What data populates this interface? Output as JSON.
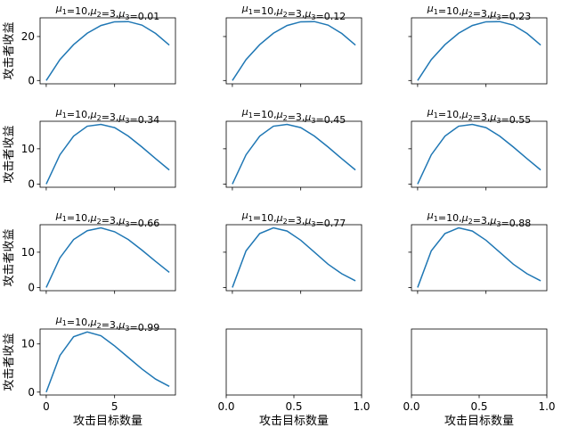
{
  "chart_data": {
    "type": "line",
    "layout": {
      "rows": 4,
      "cols": 3,
      "sharey_by_row": true
    },
    "ylabel": "攻击者收益",
    "xlabel": "攻击目标数量",
    "line_color": "#1f77b4",
    "subplots": [
      {
        "title": "μ1=10,μ2=3,μ3=0.01",
        "x": [
          0,
          1,
          2,
          3,
          4,
          5,
          6,
          7,
          8,
          9
        ],
        "y": [
          0,
          9.5,
          16.3,
          21.5,
          25,
          26.7,
          26.8,
          25.2,
          21.4,
          16.1
        ],
        "ylim": [
          -1.5,
          28.5
        ],
        "yticks": [
          0,
          20
        ],
        "xlim": [
          -0.45,
          9.45
        ],
        "xticks": [
          0,
          5
        ]
      },
      {
        "title": "μ1=10,μ2=3,μ3=0.12",
        "x": [
          0,
          1,
          2,
          3,
          4,
          5,
          6,
          7,
          8,
          9
        ],
        "y": [
          0,
          9.5,
          16.3,
          21.5,
          25,
          26.7,
          26.8,
          25.2,
          21.4,
          16.1
        ],
        "ylim": [
          -1.5,
          28.5
        ],
        "yticks": [
          0,
          20
        ],
        "xlim": [
          -0.45,
          9.45
        ],
        "xticks": [
          0,
          5
        ]
      },
      {
        "title": "μ1=10,μ2=3,μ3=0.23",
        "x": [
          0,
          1,
          2,
          3,
          4,
          5,
          6,
          7,
          8,
          9
        ],
        "y": [
          0,
          9.5,
          16.3,
          21.5,
          25,
          26.7,
          26.8,
          25.2,
          21.4,
          16.1
        ],
        "ylim": [
          -1.5,
          28.5
        ],
        "yticks": [
          0,
          20
        ],
        "xlim": [
          -0.45,
          9.45
        ],
        "xticks": [
          0,
          5
        ]
      },
      {
        "title": "μ1=10,μ2=3,μ3=0.34",
        "x": [
          0,
          1,
          2,
          3,
          4,
          5,
          6,
          7,
          8,
          9
        ],
        "y": [
          0,
          8.3,
          13.6,
          16.4,
          16.9,
          16,
          13.6,
          10.5,
          7.2,
          4
        ],
        "ylim": [
          -0.9,
          17.8
        ],
        "yticks": [
          0,
          10
        ],
        "xlim": [
          -0.45,
          9.45
        ],
        "xticks": [
          0,
          5
        ]
      },
      {
        "title": "μ1=10,μ2=3,μ3=0.45",
        "x": [
          0,
          1,
          2,
          3,
          4,
          5,
          6,
          7,
          8,
          9
        ],
        "y": [
          0,
          8.3,
          13.6,
          16.4,
          16.9,
          16,
          13.6,
          10.5,
          7.2,
          4
        ],
        "ylim": [
          -0.9,
          17.8
        ],
        "yticks": [
          0,
          10
        ],
        "xlim": [
          -0.45,
          9.45
        ],
        "xticks": [
          0,
          5
        ]
      },
      {
        "title": "μ1=10,μ2=3,μ3=0.55",
        "x": [
          0,
          1,
          2,
          3,
          4,
          5,
          6,
          7,
          8,
          9
        ],
        "y": [
          0,
          8.3,
          13.6,
          16.4,
          16.9,
          16,
          13.6,
          10.5,
          7.2,
          4
        ],
        "ylim": [
          -0.9,
          17.8
        ],
        "yticks": [
          0,
          10
        ],
        "xlim": [
          -0.45,
          9.45
        ],
        "xticks": [
          0,
          5
        ]
      },
      {
        "title": "μ1=10,μ2=3,μ3=0.66",
        "x": [
          0,
          1,
          2,
          3,
          4,
          5,
          6,
          7,
          8,
          9
        ],
        "y": [
          0,
          8.4,
          13.6,
          16.1,
          16.9,
          15.8,
          13.6,
          10.6,
          7.4,
          4.3
        ],
        "ylim": [
          -0.9,
          17.8
        ],
        "yticks": [
          0,
          10
        ],
        "xlim": [
          -0.45,
          9.45
        ],
        "xticks": [
          0,
          5
        ]
      },
      {
        "title": "μ1=10,μ2=3,μ3=0.77",
        "x": [
          0,
          1,
          2,
          3,
          4,
          5,
          6,
          7,
          8,
          9
        ],
        "y": [
          0,
          10.4,
          15.3,
          16.9,
          16,
          13.4,
          10,
          6.6,
          3.9,
          1.9
        ],
        "ylim": [
          -0.9,
          17.8
        ],
        "yticks": [
          0,
          10
        ],
        "xlim": [
          -0.45,
          9.45
        ],
        "xticks": [
          0,
          5
        ]
      },
      {
        "title": "μ1=10,μ2=3,μ3=0.88",
        "x": [
          0,
          1,
          2,
          3,
          4,
          5,
          6,
          7,
          8,
          9
        ],
        "y": [
          0,
          10.4,
          15.3,
          16.9,
          16,
          13.4,
          10,
          6.6,
          3.9,
          1.9
        ],
        "ylim": [
          -0.9,
          17.8
        ],
        "yticks": [
          0,
          10
        ],
        "xlim": [
          -0.45,
          9.45
        ],
        "xticks": [
          0,
          5
        ]
      },
      {
        "title": "μ1=10,μ2=3,μ3=0.99",
        "x": [
          0,
          1,
          2,
          3,
          4,
          5,
          6,
          7,
          8,
          9
        ],
        "y": [
          0,
          7.6,
          11.5,
          12.5,
          11.7,
          9.6,
          7.2,
          4.8,
          2.7,
          1.2
        ],
        "ylim": [
          -0.6,
          13.1
        ],
        "yticks": [
          0,
          10
        ],
        "xlim": [
          -0.45,
          9.45
        ],
        "xticks": [
          0,
          5
        ]
      },
      {
        "title": "",
        "x": [],
        "y": [],
        "ylim": [
          -0.6,
          13.1
        ],
        "yticks": [],
        "xlim": [
          0,
          1
        ],
        "xticks": [
          0,
          0.5,
          1
        ],
        "xticklabels": [
          "0.0",
          "0.5",
          "1.0"
        ]
      },
      {
        "title": "",
        "x": [],
        "y": [],
        "ylim": [
          -0.6,
          13.1
        ],
        "yticks": [],
        "xlim": [
          0,
          1
        ],
        "xticks": [
          0,
          0.5,
          1
        ],
        "xticklabels": [
          "0.0",
          "0.5",
          "1.0"
        ]
      }
    ]
  }
}
